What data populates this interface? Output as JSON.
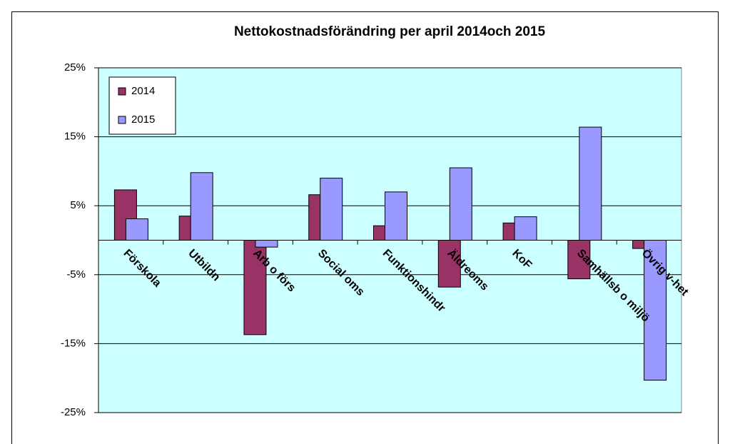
{
  "chart_data": {
    "type": "bar",
    "title": "Nettokostnadsförändring per april 2014och 2015",
    "categories": [
      "Förskola",
      "Utbildn",
      "Arb o förs",
      "Social oms",
      "Funktionshindr",
      "Äldreoms",
      "KoF",
      "Samhällsb o miljö",
      "Övrig v-het"
    ],
    "series": [
      {
        "name": "2014",
        "color": "#993366",
        "values": [
          7.3,
          3.5,
          -13.7,
          6.6,
          2.1,
          -6.8,
          2.5,
          -5.6,
          -1.2
        ]
      },
      {
        "name": "2015",
        "color": "#9999ff",
        "values": [
          3.1,
          9.8,
          -1.0,
          9.0,
          7.0,
          10.5,
          3.4,
          16.4,
          -20.3
        ]
      }
    ],
    "ylim": [
      -25,
      25
    ],
    "yticks": [
      {
        "value": -25,
        "label": "-25%"
      },
      {
        "value": -15,
        "label": "-15%"
      },
      {
        "value": -5,
        "label": "-5%"
      },
      {
        "value": 5,
        "label": "5%"
      },
      {
        "value": 15,
        "label": "15%"
      },
      {
        "value": 25,
        "label": "25%"
      }
    ],
    "grid": true,
    "legend": "top-left"
  }
}
